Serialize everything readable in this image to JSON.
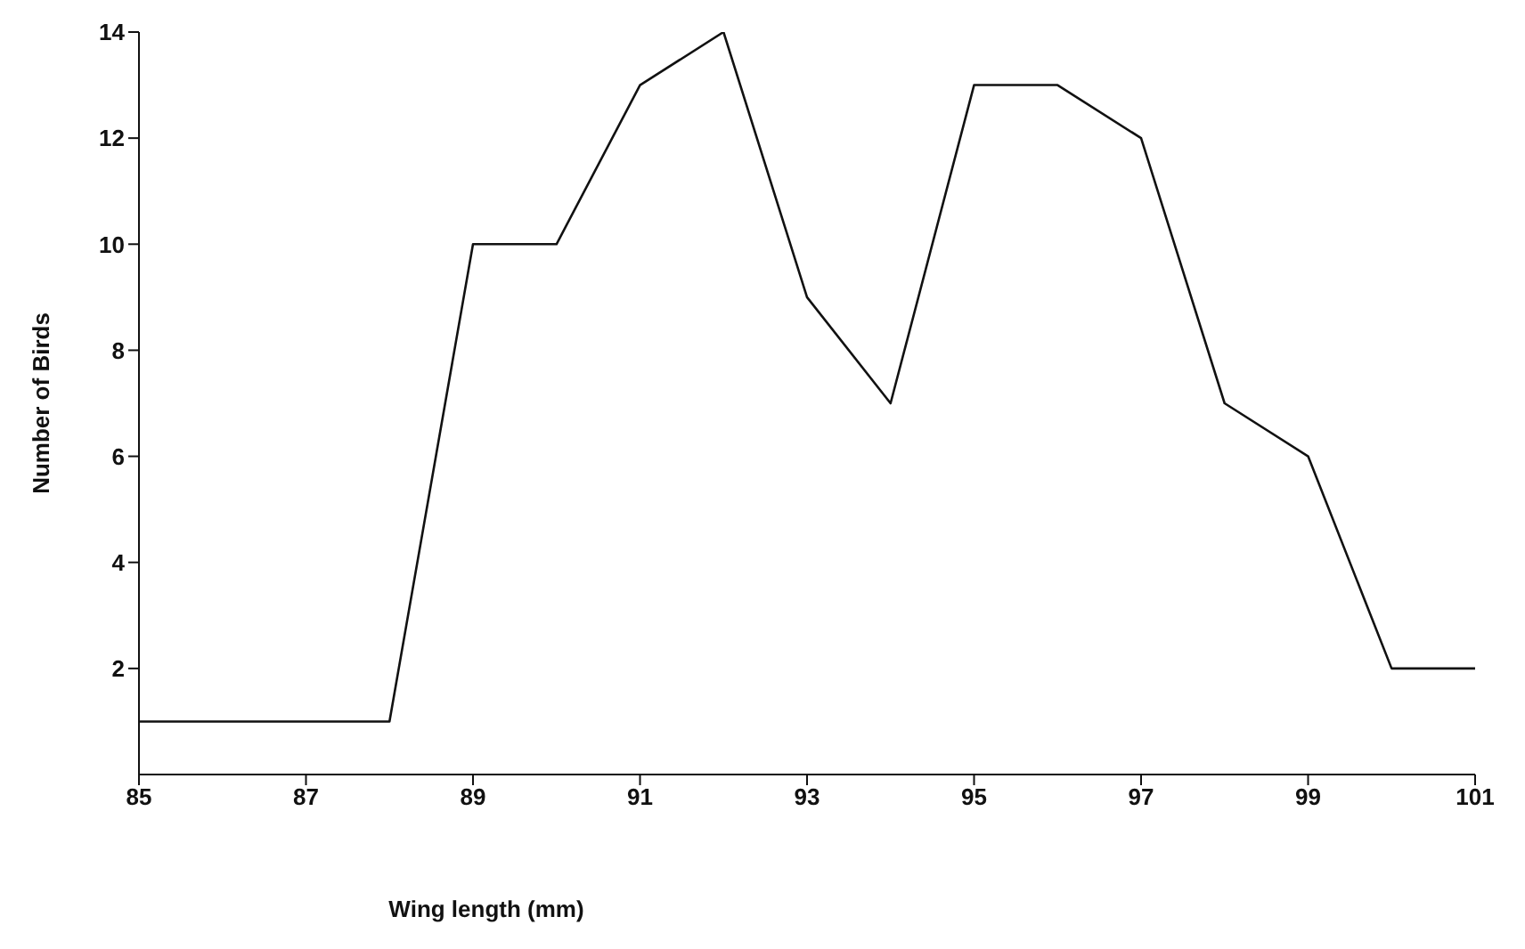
{
  "chart_data": {
    "type": "line",
    "xlabel": "Wing length (mm)",
    "ylabel": "Number of Birds",
    "x": [
      85,
      86,
      87,
      88,
      89,
      90,
      91,
      92,
      93,
      94,
      95,
      96,
      97,
      98,
      99,
      100,
      101
    ],
    "series": [
      {
        "color": "#111111",
        "values": [
          1,
          1,
          1,
          1,
          10,
          10,
          13,
          14,
          9,
          7,
          13,
          13,
          12,
          7,
          6,
          2,
          2
        ]
      }
    ],
    "xlim": [
      85,
      101
    ],
    "xticks": [
      85,
      87,
      89,
      91,
      93,
      95,
      97,
      99,
      101
    ],
    "ylim": [
      0,
      14
    ],
    "yticks": [
      2,
      4,
      6,
      8,
      10,
      12,
      14
    ],
    "grid": false,
    "legend": false,
    "marker": "none",
    "line_style": "solid"
  }
}
